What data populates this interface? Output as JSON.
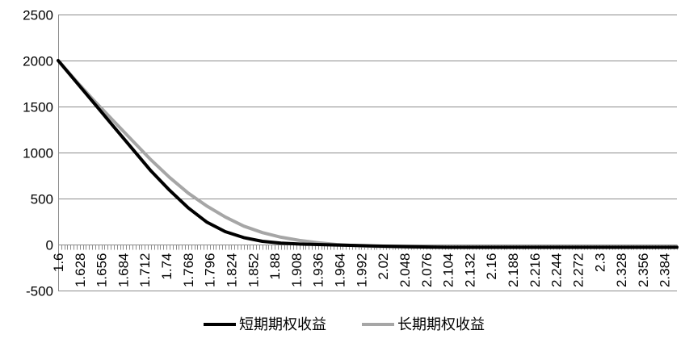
{
  "chart_data": {
    "type": "line",
    "title": "",
    "xlabel": "",
    "ylabel": "",
    "ylim": [
      -500,
      2500
    ],
    "y_ticks": [
      -500,
      0,
      500,
      1000,
      1500,
      2000,
      2500
    ],
    "x_start": 1.6,
    "x_end": 2.4,
    "x_step": 0.004,
    "x_tick_labels": [
      "1.6",
      "1.628",
      "1.656",
      "1.684",
      "1.712",
      "1.74",
      "1.768",
      "1.796",
      "1.824",
      "1.852",
      "1.88",
      "1.908",
      "1.936",
      "1.964",
      "1.992",
      "2.02",
      "2.048",
      "2.076",
      "2.104",
      "2.132",
      "2.16",
      "2.188",
      "2.216",
      "2.244",
      "2.272",
      "2.3",
      "2.328",
      "2.356",
      "2.384"
    ],
    "grid": "horizontal",
    "legend_position": "bottom",
    "x": [
      1.6,
      1.624,
      1.648,
      1.672,
      1.696,
      1.72,
      1.744,
      1.768,
      1.792,
      1.816,
      1.84,
      1.864,
      1.888,
      1.912,
      1.936,
      1.96,
      1.984,
      2.008,
      2.032,
      2.056,
      2.08,
      2.104,
      2.2,
      2.3,
      2.4
    ],
    "series": [
      {
        "name": "短期期权收益",
        "color": "#000000",
        "values": [
          2000,
          1760,
          1520,
          1280,
          1040,
          800,
          590,
          400,
          245,
          140,
          75,
          35,
          15,
          5,
          0,
          -5,
          -10,
          -15,
          -20,
          -24,
          -27,
          -30,
          -30,
          -30,
          -30
        ]
      },
      {
        "name": "长期期权收益",
        "color": "#a6a6a6",
        "values": [
          2000,
          1770,
          1550,
          1340,
          1130,
          920,
          730,
          560,
          420,
          300,
          200,
          130,
          80,
          45,
          20,
          0,
          -12,
          -20,
          -24,
          -27,
          -29,
          -30,
          -30,
          -30,
          -30
        ]
      }
    ]
  }
}
